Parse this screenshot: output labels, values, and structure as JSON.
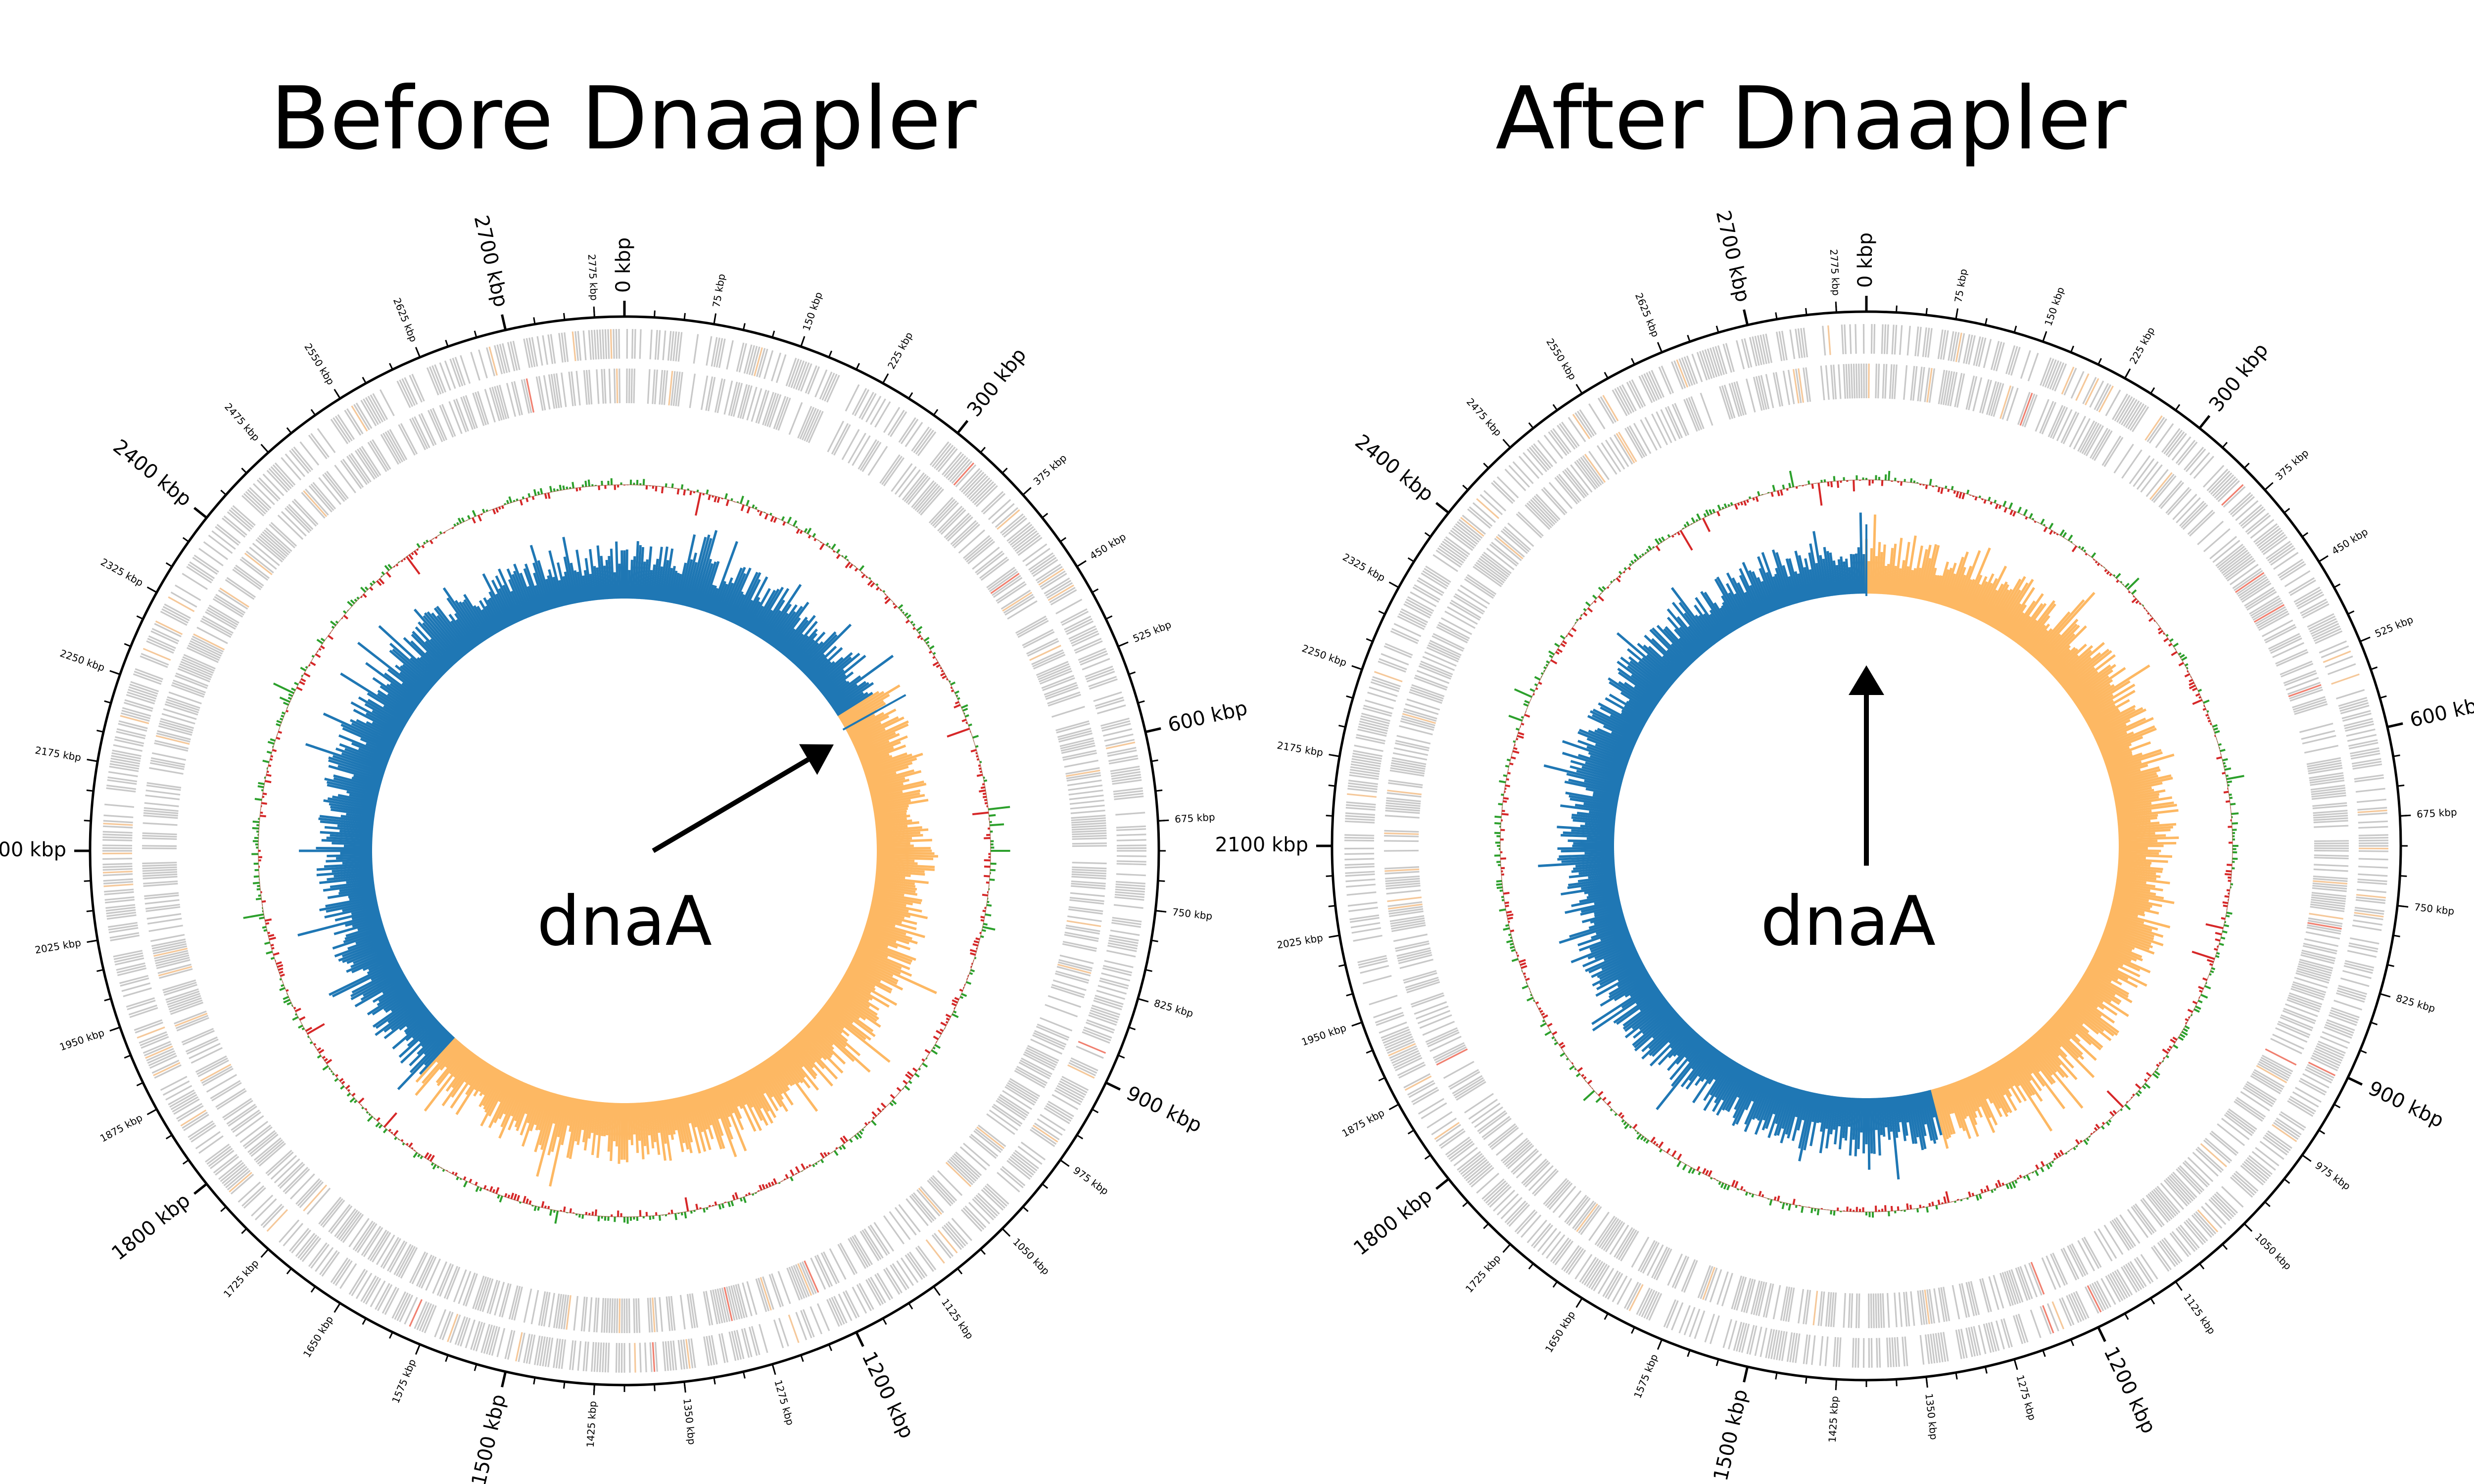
{
  "panels": [
    {
      "id": "before",
      "title": "Before Dnaapler",
      "gene_label": "dnaA",
      "start_gene_angle_deg": 61,
      "gc_skew_positive_start_deg": 58,
      "gc_skew_positive_end_deg": 222,
      "arrow": "diagonal"
    },
    {
      "id": "after",
      "title": "After Dnaapler",
      "gene_label": "dnaA",
      "start_gene_angle_deg": 0,
      "gc_skew_positive_start_deg": 0,
      "gc_skew_positive_end_deg": 165,
      "arrow": "vertical"
    }
  ],
  "genome": {
    "length_kbp": 2800,
    "major_ticks_kbp": [
      0,
      300,
      600,
      900,
      1200,
      1500,
      1800,
      2100,
      2400,
      2700
    ],
    "major_tick_labels": [
      "0 kbp",
      "300 kbp",
      "600 kbp",
      "900 kbp",
      "1200 kbp",
      "1500 kbp",
      "1800 kbp",
      "2100 kbp",
      "2400 kbp",
      "2700 kbp"
    ],
    "minor_ticks_kbp": [
      75,
      150,
      225,
      375,
      450,
      525,
      675,
      750,
      825,
      975,
      1050,
      1125,
      1275,
      1350,
      1425,
      1575,
      1650,
      1725,
      1875,
      1950,
      2025,
      2175,
      2250,
      2325,
      2475,
      2550,
      2625,
      2775
    ],
    "minor_tick_labels": [
      "75 kbp",
      "150 kbp",
      "225 kbp",
      "375 kbp",
      "450 kbp",
      "525 kbp",
      "675 kbp",
      "750 kbp",
      "825 kbp",
      "975 kbp",
      "1050 kbp",
      "1125 kbp",
      "1275 kbp",
      "1350 kbp",
      "1425 kbp",
      "1575 kbp",
      "1650 kbp",
      "1725 kbp",
      "1875 kbp",
      "1950 kbp",
      "2025 kbp",
      "2175 kbp",
      "2250 kbp",
      "2325 kbp",
      "2475 kbp",
      "2550 kbp",
      "2625 kbp",
      "2775 kbp"
    ]
  },
  "colors": {
    "cds": "#c8c8c8",
    "rna": "#f08070",
    "other_feature": "#f5c89a",
    "gc_content_positive": "#2ca02c",
    "gc_content_negative": "#d62728",
    "gc_skew_positive": "#fdb863",
    "gc_skew_negative": "#1f77b4",
    "axis": "#000000"
  }
}
